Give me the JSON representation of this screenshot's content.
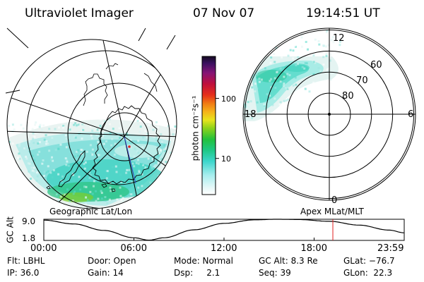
{
  "header": {
    "instrument": "Ultraviolet Imager",
    "date": "07 Nov 07",
    "time": "19:14:51 UT"
  },
  "colorbar": {
    "unit_label": "photon cm⁻²s⁻¹",
    "ticks": [
      {
        "value": 100,
        "label": "100"
      },
      {
        "value": 10,
        "label": "10"
      }
    ],
    "min": 2.5,
    "max": 500,
    "scale": "log"
  },
  "geo_panel": {
    "label": "Geographic Lat/Lon",
    "pole": "south"
  },
  "apex_panel": {
    "label": "Apex MLat/MLT",
    "mlt_labels": [
      "12",
      "6",
      "0",
      "18"
    ],
    "lat_rings": [
      {
        "lat": 80,
        "label": "80"
      },
      {
        "lat": 70,
        "label": "70"
      },
      {
        "lat": 60,
        "label": "60"
      },
      {
        "lat": 50,
        "label": ""
      }
    ]
  },
  "orbit_plot": {
    "ylabel": "GC Alt",
    "y_ticks": [
      "9.0",
      "1.8"
    ],
    "y_range": [
      1.8,
      9.0
    ],
    "x_ticks": [
      "00:00",
      "06:00",
      "12:00",
      "18:00",
      "23:59"
    ],
    "x_range_hours": [
      0,
      24
    ],
    "marker_hour": 19.248,
    "marker_color": "#e02020"
  },
  "footer": [
    {
      "key": "filter",
      "text": "Flt: LBHL"
    },
    {
      "key": "door",
      "text": "Door: Open"
    },
    {
      "key": "mode",
      "text": "Mode: Normal"
    },
    {
      "key": "gc_alt",
      "text": "GC Alt: 8.3 Re"
    },
    {
      "key": "glat",
      "text": "GLat: −76.7"
    },
    {
      "key": "ip",
      "text": "IP: 36.0"
    },
    {
      "key": "gain",
      "text": "Gain: 14"
    },
    {
      "key": "dsp",
      "text": "Dsp:     2.1"
    },
    {
      "key": "seq",
      "text": "Seq: 39"
    },
    {
      "key": "glon",
      "text": "GLon:  22.3"
    }
  ]
}
